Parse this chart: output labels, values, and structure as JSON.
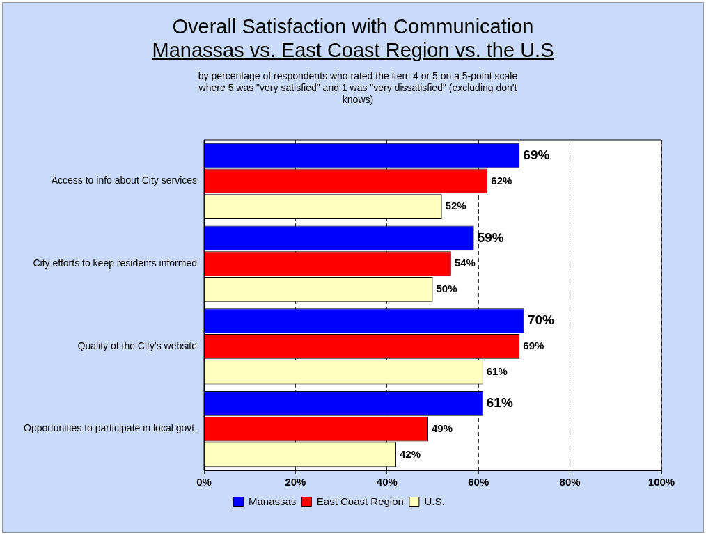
{
  "chart_data": {
    "type": "bar",
    "orientation": "horizontal",
    "title": "Overall Satisfaction with Communication",
    "subtitle": "Manassas vs. East Coast Region vs. the U.S",
    "annotations": [
      "by percentage of respondents who rated the item 4 or 5 on a 5-point scale where 5 was \"very satisfied\" and 1 was \"very dissatisfied\" (excluding don't knows)"
    ],
    "categories": [
      "Access to info about City services",
      "City efforts to keep residents informed",
      "Quality of the City's website",
      "Opportunities to participate in local govt."
    ],
    "series": [
      {
        "name": "Manassas",
        "color": "#0000ff",
        "values": [
          69,
          59,
          70,
          61
        ],
        "value_labels": [
          "69%",
          "59%",
          "70%",
          "61%"
        ]
      },
      {
        "name": "East Coast Region",
        "color": "#ff0000",
        "values": [
          62,
          54,
          69,
          49
        ],
        "value_labels": [
          "62%",
          "54%",
          "69%",
          "49%"
        ]
      },
      {
        "name": "U.S.",
        "color": "#ffffc0",
        "values": [
          52,
          50,
          61,
          42
        ],
        "value_labels": [
          "52%",
          "50%",
          "61%",
          "42%"
        ]
      }
    ],
    "xlim": [
      0,
      100
    ],
    "xticks": [
      {
        "value": 0,
        "label": "0%"
      },
      {
        "value": 20,
        "label": "20%"
      },
      {
        "value": 40,
        "label": "40%"
      },
      {
        "value": 60,
        "label": "60%"
      },
      {
        "value": 80,
        "label": "80%"
      },
      {
        "value": 100,
        "label": "100%"
      }
    ],
    "grid": "x",
    "legend": "bottom"
  }
}
